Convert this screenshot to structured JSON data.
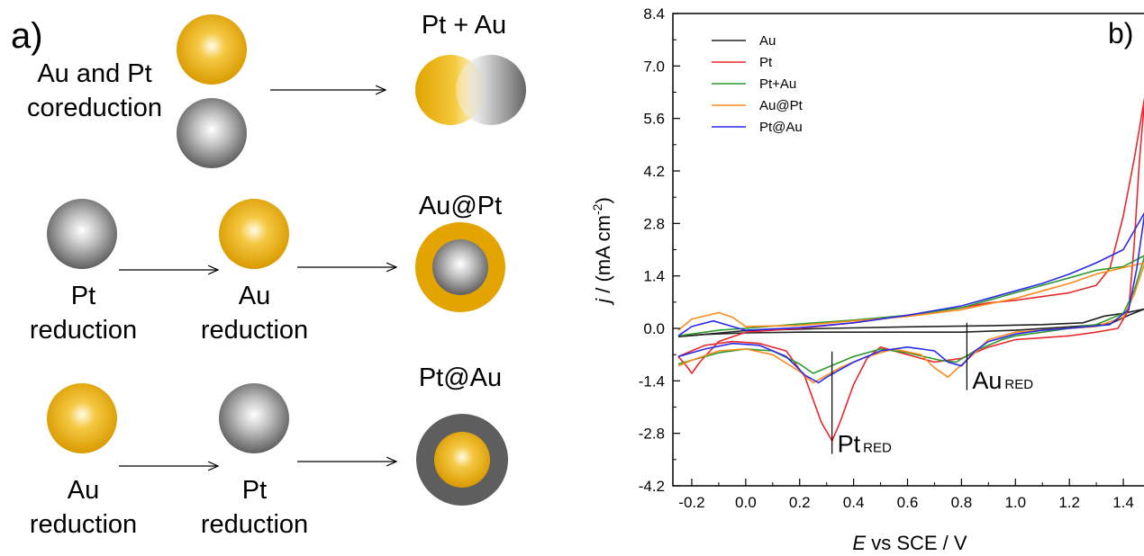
{
  "panel_a": {
    "panel_letter": "a)",
    "rows": [
      {
        "left_label": [
          "Au and Pt",
          "coreduction"
        ],
        "result": "Pt + Au"
      },
      {
        "step1": [
          "Pt",
          "reduction"
        ],
        "step2": [
          "Au",
          "reduction"
        ],
        "result": "Au@Pt"
      },
      {
        "step1": [
          "Au",
          "reduction"
        ],
        "step2": [
          "Pt",
          "reduction"
        ],
        "result": "Pt@Au"
      }
    ],
    "colors": {
      "au": "#e8a900",
      "pt": "#7a7a7a"
    }
  },
  "chart_data": {
    "type": "line",
    "panel_letter": "b)",
    "xlabel_italic": "E",
    "xlabel_rest": " vs SCE / V",
    "ylabel_italic": "j",
    "ylabel_rest": " / (mA cm",
    "ylabel_sup": "-2",
    "ylabel_end": ")",
    "xlim": [
      -0.27,
      1.48
    ],
    "ylim": [
      -4.2,
      8.4
    ],
    "xticks": [
      -0.2,
      0.0,
      0.2,
      0.4,
      0.6,
      0.8,
      1.0,
      1.2,
      1.4
    ],
    "xtick_labels": [
      "-0.2",
      "0.0",
      "0.2",
      "0.4",
      "0.6",
      "0.8",
      "1.0",
      "1.2",
      "1.4"
    ],
    "yticks": [
      -4.2,
      -2.8,
      -1.4,
      0.0,
      1.4,
      2.8,
      4.2,
      5.6,
      7.0,
      8.4
    ],
    "ytick_labels": [
      "-4.2",
      "-2.8",
      "-1.4",
      "0.0",
      "1.4",
      "2.8",
      "4.2",
      "5.6",
      "7.0",
      "8.4"
    ],
    "legend_position": "top-left",
    "annotations": [
      {
        "main": "Pt",
        "sub": "RED",
        "x": 0.32,
        "y_top": -0.62,
        "y_bottom": -3.35
      },
      {
        "main": "Au",
        "sub": "RED",
        "x": 0.82,
        "y_top": 0.15,
        "y_bottom": -1.65
      }
    ],
    "series": [
      {
        "name": "Au",
        "color": "#222222",
        "segments": [
          [
            [
              -0.25,
              -0.22
            ],
            [
              0.0,
              -0.06
            ],
            [
              0.3,
              0.0
            ],
            [
              0.6,
              0.04
            ],
            [
              0.9,
              0.07
            ],
            [
              1.1,
              0.1
            ],
            [
              1.25,
              0.15
            ],
            [
              1.33,
              0.33
            ],
            [
              1.4,
              0.4
            ],
            [
              1.48,
              0.52
            ]
          ],
          [
            [
              1.48,
              0.52
            ],
            [
              1.42,
              0.35
            ],
            [
              1.35,
              0.12
            ],
            [
              1.2,
              0.04
            ],
            [
              1.0,
              -0.05
            ],
            [
              0.8,
              -0.1
            ],
            [
              0.5,
              -0.1
            ],
            [
              0.2,
              -0.1
            ],
            [
              0.0,
              -0.12
            ],
            [
              -0.15,
              -0.16
            ],
            [
              -0.25,
              -0.22
            ]
          ]
        ]
      },
      {
        "name": "Pt",
        "color": "#e8282c",
        "segments": [
          [
            [
              -0.25,
              -0.75
            ],
            [
              -0.22,
              -1.0
            ],
            [
              -0.2,
              -1.2
            ],
            [
              -0.17,
              -0.9
            ],
            [
              -0.1,
              -0.35
            ],
            [
              0.0,
              -0.1
            ],
            [
              0.2,
              0.0
            ],
            [
              0.4,
              0.15
            ],
            [
              0.6,
              0.35
            ],
            [
              0.8,
              0.55
            ],
            [
              0.9,
              0.68
            ],
            [
              1.0,
              0.75
            ],
            [
              1.1,
              0.85
            ],
            [
              1.2,
              0.95
            ],
            [
              1.3,
              1.15
            ],
            [
              1.35,
              1.6
            ],
            [
              1.4,
              3.0
            ],
            [
              1.44,
              4.5
            ],
            [
              1.48,
              6.2
            ]
          ],
          [
            [
              1.48,
              6.2
            ],
            [
              1.46,
              4.5
            ],
            [
              1.44,
              2.2
            ],
            [
              1.42,
              0.5
            ],
            [
              1.38,
              0.0
            ],
            [
              1.3,
              -0.1
            ],
            [
              1.2,
              -0.2
            ],
            [
              1.1,
              -0.25
            ],
            [
              1.0,
              -0.3
            ],
            [
              0.9,
              -0.5
            ],
            [
              0.8,
              -0.8
            ],
            [
              0.7,
              -0.9
            ],
            [
              0.6,
              -0.7
            ],
            [
              0.5,
              -0.5
            ],
            [
              0.45,
              -0.8
            ],
            [
              0.4,
              -1.5
            ],
            [
              0.35,
              -2.5
            ],
            [
              0.32,
              -3.0
            ],
            [
              0.28,
              -2.5
            ],
            [
              0.22,
              -1.3
            ],
            [
              0.15,
              -0.6
            ],
            [
              0.05,
              -0.4
            ],
            [
              -0.05,
              -0.35
            ],
            [
              -0.15,
              -0.45
            ],
            [
              -0.25,
              -0.75
            ]
          ]
        ]
      },
      {
        "name": "Pt+Au",
        "color": "#2e9a2e",
        "segments": [
          [
            [
              -0.25,
              -0.2
            ],
            [
              -0.1,
              -0.05
            ],
            [
              0.0,
              0.0
            ],
            [
              0.2,
              0.12
            ],
            [
              0.4,
              0.22
            ],
            [
              0.6,
              0.35
            ],
            [
              0.8,
              0.55
            ],
            [
              0.9,
              0.75
            ],
            [
              1.0,
              0.95
            ],
            [
              1.1,
              1.15
            ],
            [
              1.2,
              1.35
            ],
            [
              1.3,
              1.55
            ],
            [
              1.4,
              1.65
            ],
            [
              1.48,
              1.95
            ]
          ],
          [
            [
              1.48,
              1.95
            ],
            [
              1.44,
              1.0
            ],
            [
              1.4,
              0.4
            ],
            [
              1.3,
              0.1
            ],
            [
              1.2,
              0.0
            ],
            [
              1.1,
              -0.1
            ],
            [
              1.0,
              -0.2
            ],
            [
              0.95,
              -0.3
            ],
            [
              0.9,
              -0.45
            ],
            [
              0.85,
              -0.6
            ],
            [
              0.78,
              -0.9
            ],
            [
              0.72,
              -0.85
            ],
            [
              0.6,
              -0.65
            ],
            [
              0.5,
              -0.55
            ],
            [
              0.4,
              -0.75
            ],
            [
              0.3,
              -1.05
            ],
            [
              0.25,
              -1.2
            ],
            [
              0.2,
              -0.95
            ],
            [
              0.1,
              -0.6
            ],
            [
              0.0,
              -0.55
            ],
            [
              -0.1,
              -0.65
            ],
            [
              -0.2,
              -0.85
            ],
            [
              -0.25,
              -0.95
            ]
          ]
        ]
      },
      {
        "name": "Au@Pt",
        "color": "#ff8a1c",
        "segments": [
          [
            [
              -0.25,
              -0.05
            ],
            [
              -0.2,
              0.25
            ],
            [
              -0.1,
              0.42
            ],
            [
              -0.05,
              0.3
            ],
            [
              0.0,
              0.05
            ],
            [
              0.2,
              0.08
            ],
            [
              0.4,
              0.2
            ],
            [
              0.6,
              0.32
            ],
            [
              0.8,
              0.5
            ],
            [
              0.9,
              0.65
            ],
            [
              1.0,
              0.8
            ],
            [
              1.1,
              1.0
            ],
            [
              1.2,
              1.2
            ],
            [
              1.3,
              1.45
            ],
            [
              1.4,
              1.62
            ],
            [
              1.48,
              1.75
            ]
          ],
          [
            [
              1.48,
              1.75
            ],
            [
              1.44,
              0.9
            ],
            [
              1.4,
              0.3
            ],
            [
              1.3,
              0.05
            ],
            [
              1.2,
              0.0
            ],
            [
              1.1,
              -0.05
            ],
            [
              1.0,
              -0.1
            ],
            [
              0.9,
              -0.3
            ],
            [
              0.85,
              -0.65
            ],
            [
              0.78,
              -1.1
            ],
            [
              0.75,
              -1.3
            ],
            [
              0.7,
              -1.05
            ],
            [
              0.65,
              -0.7
            ],
            [
              0.55,
              -0.55
            ],
            [
              0.45,
              -0.75
            ],
            [
              0.35,
              -1.05
            ],
            [
              0.25,
              -1.45
            ],
            [
              0.2,
              -1.15
            ],
            [
              0.1,
              -0.7
            ],
            [
              0.0,
              -0.55
            ],
            [
              -0.1,
              -0.6
            ],
            [
              -0.2,
              -0.85
            ],
            [
              -0.25,
              -1.0
            ]
          ]
        ]
      },
      {
        "name": "Pt@Au",
        "color": "#2a2ae8",
        "segments": [
          [
            [
              -0.25,
              -0.2
            ],
            [
              -0.2,
              0.05
            ],
            [
              -0.12,
              0.2
            ],
            [
              -0.05,
              0.05
            ],
            [
              0.0,
              -0.05
            ],
            [
              0.2,
              0.02
            ],
            [
              0.4,
              0.15
            ],
            [
              0.6,
              0.35
            ],
            [
              0.8,
              0.6
            ],
            [
              0.9,
              0.8
            ],
            [
              1.0,
              1.0
            ],
            [
              1.1,
              1.2
            ],
            [
              1.2,
              1.45
            ],
            [
              1.3,
              1.75
            ],
            [
              1.4,
              2.1
            ],
            [
              1.48,
              3.1
            ]
          ],
          [
            [
              1.48,
              3.1
            ],
            [
              1.45,
              1.6
            ],
            [
              1.42,
              0.5
            ],
            [
              1.35,
              0.1
            ],
            [
              1.2,
              0.0
            ],
            [
              1.1,
              -0.05
            ],
            [
              1.0,
              -0.15
            ],
            [
              0.9,
              -0.35
            ],
            [
              0.85,
              -0.6
            ],
            [
              0.8,
              -1.0
            ],
            [
              0.75,
              -0.9
            ],
            [
              0.7,
              -0.6
            ],
            [
              0.6,
              -0.5
            ],
            [
              0.5,
              -0.6
            ],
            [
              0.4,
              -0.9
            ],
            [
              0.3,
              -1.3
            ],
            [
              0.27,
              -1.45
            ],
            [
              0.22,
              -1.25
            ],
            [
              0.15,
              -0.75
            ],
            [
              0.05,
              -0.45
            ],
            [
              -0.05,
              -0.4
            ],
            [
              -0.15,
              -0.55
            ],
            [
              -0.25,
              -0.75
            ]
          ]
        ]
      }
    ]
  }
}
